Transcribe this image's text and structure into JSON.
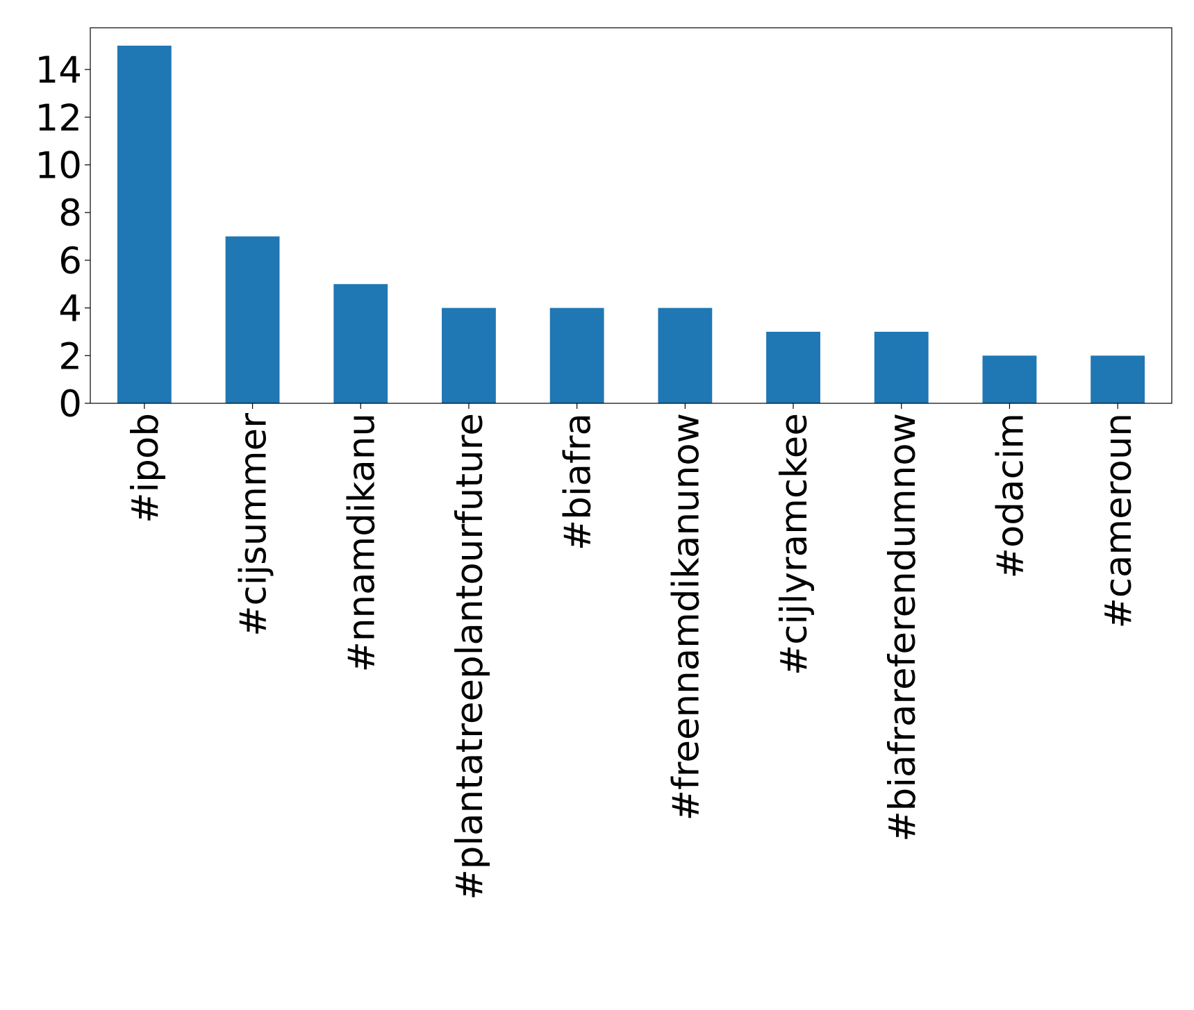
{
  "chart_data": {
    "type": "bar",
    "categories": [
      "#ipob",
      "#cijsummer",
      "#nnamdikanu",
      "#plantatreeplantourfuture",
      "#biafra",
      "#freennamdikanunow",
      "#cijlyramckee",
      "#biafrareferendumnow",
      "#odacim",
      "#cameroun"
    ],
    "values": [
      15,
      7,
      5,
      4,
      4,
      4,
      3,
      3,
      2,
      2
    ],
    "color": "#1f77b4",
    "ylim": [
      0,
      15.75
    ],
    "yticks": [
      0,
      2,
      4,
      6,
      8,
      10,
      12,
      14
    ],
    "grid": false
  }
}
